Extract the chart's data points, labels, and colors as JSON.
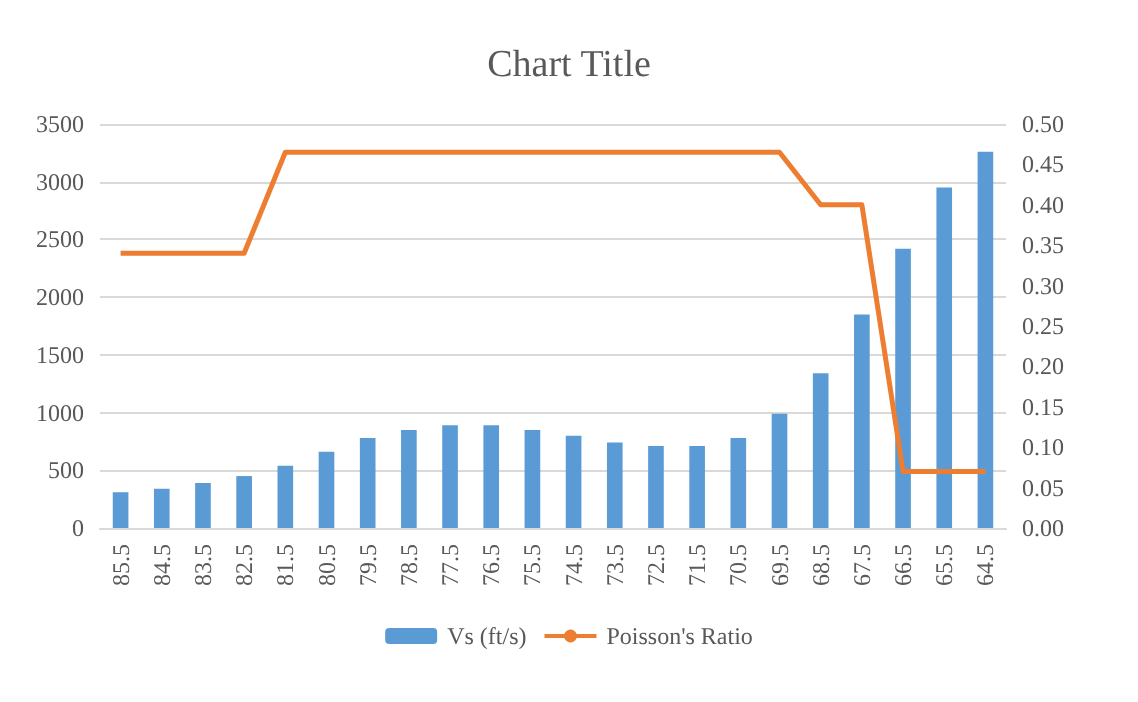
{
  "chart_data": {
    "type": "bar",
    "title": "Chart Title",
    "categories": [
      "85.5",
      "84.5",
      "83.5",
      "82.5",
      "81.5",
      "80.5",
      "79.5",
      "78.5",
      "77.5",
      "76.5",
      "75.5",
      "74.5",
      "73.5",
      "72.5",
      "71.5",
      "70.5",
      "69.5",
      "68.5",
      "67.5",
      "66.5",
      "65.5",
      "64.5"
    ],
    "series": [
      {
        "name": "Vs (ft/s)",
        "color": "#5b9bd5",
        "values": [
          310,
          340,
          390,
          450,
          540,
          660,
          780,
          850,
          890,
          890,
          850,
          800,
          740,
          710,
          710,
          780,
          990,
          1340,
          1850,
          2420,
          2950,
          3260
        ]
      },
      {
        "name": "Poisson's Ratio",
        "type": "line",
        "axis": "y2",
        "color": "#ed7d31",
        "values": [
          0.34,
          0.34,
          0.34,
          0.34,
          0.465,
          0.465,
          0.465,
          0.465,
          0.465,
          0.465,
          0.465,
          0.465,
          0.465,
          0.465,
          0.465,
          0.465,
          0.465,
          0.4,
          0.4,
          0.07,
          0.07,
          0.07
        ]
      }
    ],
    "ylim": [
      0,
      3500
    ],
    "yticks": [
      0,
      500,
      1000,
      1500,
      2000,
      2500,
      3000,
      3500
    ],
    "y2lim": [
      0,
      0.5
    ],
    "y2ticks": [
      {
        "value": 0,
        "label": "0.00"
      },
      {
        "value": 0.05,
        "label": "0.05"
      },
      {
        "value": 0.1,
        "label": "0.10"
      },
      {
        "value": 0.15,
        "label": "0.15"
      },
      {
        "value": 0.2,
        "label": "0.20"
      },
      {
        "value": 0.25,
        "label": "0.25"
      },
      {
        "value": 0.3,
        "label": "0.30"
      },
      {
        "value": 0.35,
        "label": "0.35"
      },
      {
        "value": 0.4,
        "label": "0.40"
      },
      {
        "value": 0.45,
        "label": "0.45"
      },
      {
        "value": 0.5,
        "label": "0.50"
      }
    ],
    "grid": "y",
    "legend": "bottom",
    "marker": "none"
  }
}
